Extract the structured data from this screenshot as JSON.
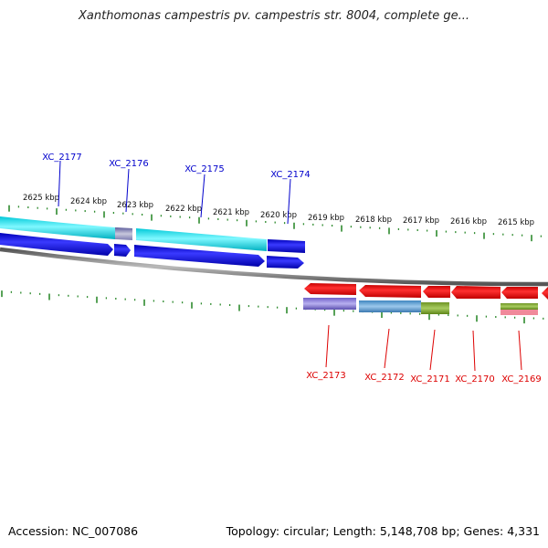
{
  "header": {
    "title": "Xanthomonas campestris pv. campestris str. 8004, complete ge..."
  },
  "footer": {
    "accession": "Accession: NC_007086",
    "summary": "Topology: circular; Length: 5,148,708 bp; Genes: 4,331"
  },
  "scale": {
    "kbp_labels": [
      "2625 kbp",
      "2624 kbp",
      "2623 kbp",
      "2622 kbp",
      "2621 kbp",
      "2620 kbp",
      "2619 kbp",
      "2618 kbp",
      "2617 kbp",
      "2616 kbp",
      "2615 kbp"
    ]
  },
  "colors": {
    "forward_label": "#0000cc",
    "reverse_label": "#dd0000",
    "tick": "#2e8b2e",
    "backbone": "#777777"
  },
  "genes": {
    "forward": [
      "XC_2177",
      "XC_2176",
      "XC_2175",
      "XC_2174"
    ],
    "reverse": [
      "XC_2173",
      "XC_2172",
      "XC_2171",
      "XC_2170",
      "XC_2169"
    ]
  }
}
